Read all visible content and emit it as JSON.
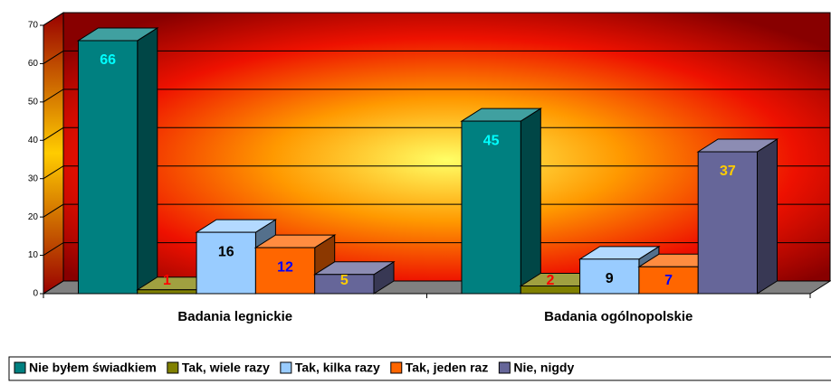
{
  "chart_data": {
    "type": "bar3d",
    "categories": [
      "Badania legnickie",
      "Badania ogólnopolskie"
    ],
    "series": [
      {
        "name": "Nie byłem świadkiem",
        "color": "#008080",
        "label_color": "#00ffff",
        "values": [
          66,
          45
        ]
      },
      {
        "name": "Tak, wiele razy",
        "color": "#808000",
        "label_color": "#ff0000",
        "values": [
          1,
          2
        ]
      },
      {
        "name": "Tak, kilka razy",
        "color": "#99ccff",
        "label_color": "#000000",
        "values": [
          16,
          9
        ]
      },
      {
        "name": "Tak, jeden raz",
        "color": "#ff6600",
        "label_color": "#0000ff",
        "values": [
          12,
          7
        ]
      },
      {
        "name": "Nie, nigdy",
        "color": "#666699",
        "label_color": "#ffcc00",
        "values": [
          5,
          37
        ]
      }
    ],
    "ylim": [
      0,
      70
    ],
    "yticks": [
      0,
      10,
      20,
      30,
      40,
      50,
      60,
      70
    ],
    "grid": true,
    "legend": "bottom"
  }
}
